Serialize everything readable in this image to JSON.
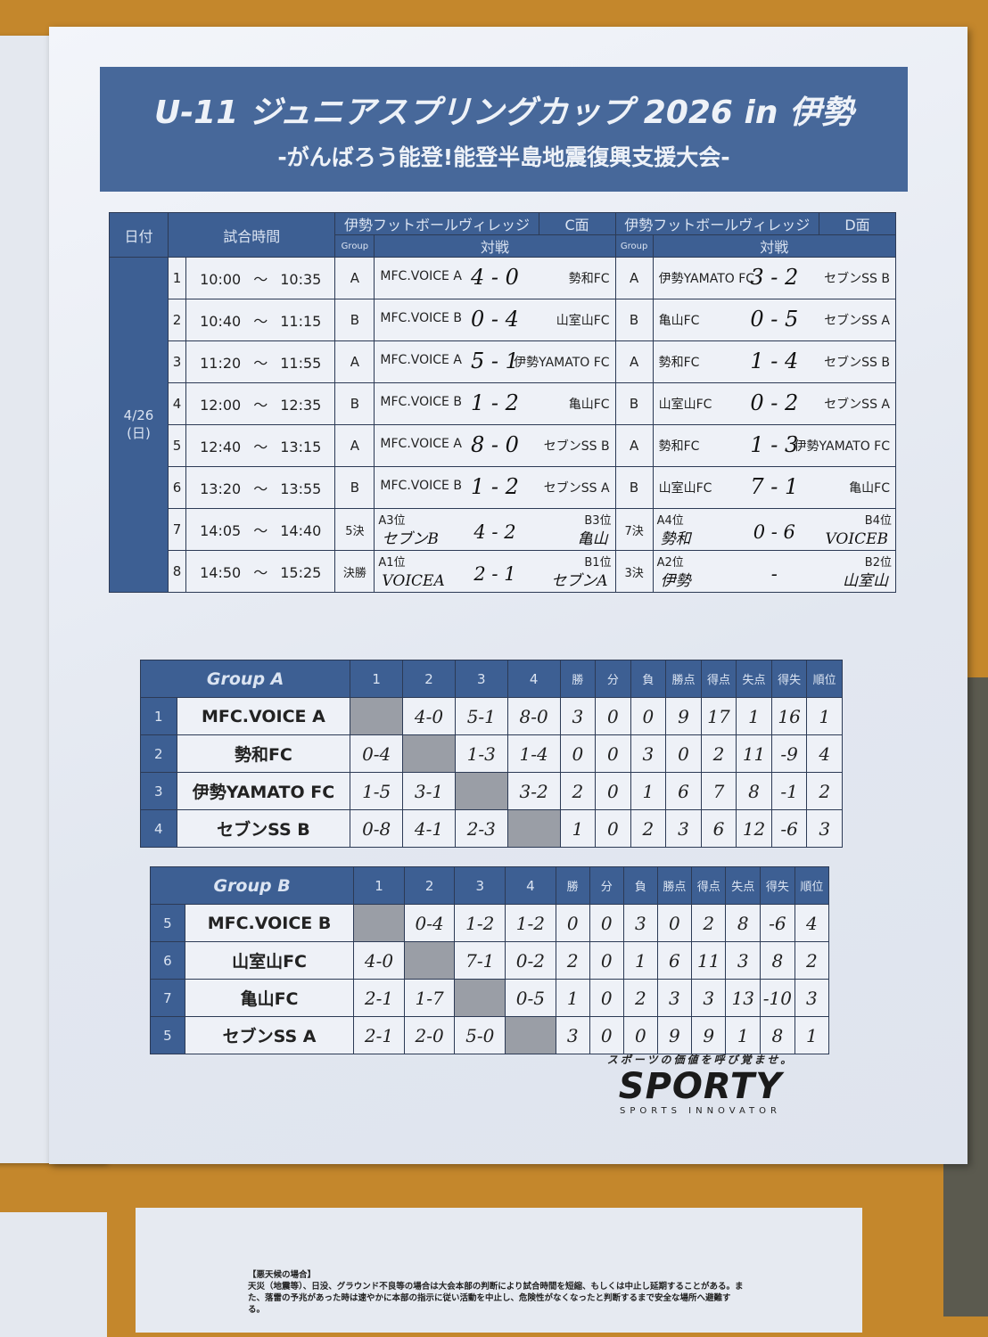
{
  "title": "U-11 ジュニアスプリングカップ 2026 in 伊勢",
  "subtitle": "-がんばろう能登!能登半島地震復興支援大会-",
  "schedule": {
    "headers": {
      "date": "日付",
      "time": "試合時間",
      "venue_c": "伊勢フットボールヴィレッジ",
      "court_c": "C面",
      "venue_d": "伊勢フットボールヴィレッジ",
      "court_d": "D面",
      "group": "Group",
      "match": "対戦"
    },
    "date": "4/26",
    "weekday": "(日)",
    "rows": [
      {
        "no": "1",
        "start": "10:00",
        "end": "10:35",
        "c": {
          "group": "A",
          "home": "MFC.VOICE A",
          "score": "4 - 0",
          "away": "勢和FC"
        },
        "d": {
          "group": "A",
          "home": "伊勢YAMATO FC",
          "score": "3 - 2",
          "away": "セブンSS B"
        }
      },
      {
        "no": "2",
        "start": "10:40",
        "end": "11:15",
        "c": {
          "group": "B",
          "home": "MFC.VOICE B",
          "score": "0 - 4",
          "away": "山室山FC"
        },
        "d": {
          "group": "B",
          "home": "亀山FC",
          "score": "0 - 5",
          "away": "セブンSS A"
        }
      },
      {
        "no": "3",
        "start": "11:20",
        "end": "11:55",
        "c": {
          "group": "A",
          "home": "MFC.VOICE A",
          "score": "5 - 1",
          "away": "伊勢YAMATO FC"
        },
        "d": {
          "group": "A",
          "home": "勢和FC",
          "score": "1 - 4",
          "away": "セブンSS B"
        }
      },
      {
        "no": "4",
        "start": "12:00",
        "end": "12:35",
        "c": {
          "group": "B",
          "home": "MFC.VOICE B",
          "score": "1 - 2",
          "away": "亀山FC"
        },
        "d": {
          "group": "B",
          "home": "山室山FC",
          "score": "0 - 2",
          "away": "セブンSS A"
        }
      },
      {
        "no": "5",
        "start": "12:40",
        "end": "13:15",
        "c": {
          "group": "A",
          "home": "MFC.VOICE A",
          "score": "8 - 0",
          "away": "セブンSS B"
        },
        "d": {
          "group": "A",
          "home": "勢和FC",
          "score": "1 - 3",
          "away": "伊勢YAMATO FC"
        }
      },
      {
        "no": "6",
        "start": "13:20",
        "end": "13:55",
        "c": {
          "group": "B",
          "home": "MFC.VOICE B",
          "score": "1 - 2",
          "away": "セブンSS A"
        },
        "d": {
          "group": "B",
          "home": "山室山FC",
          "score": "7 - 1",
          "away": "亀山FC"
        }
      },
      {
        "no": "7",
        "start": "14:05",
        "end": "14:40",
        "c": {
          "group": "5決",
          "home_slot": "A3位",
          "home": "セブンB",
          "score": "4 - 2",
          "away_slot": "B3位",
          "away": "亀山"
        },
        "d": {
          "group": "7決",
          "home_slot": "A4位",
          "home": "勢和",
          "score": "0 - 6",
          "away_slot": "B4位",
          "away": "VOICEB"
        }
      },
      {
        "no": "8",
        "start": "14:50",
        "end": "15:25",
        "c": {
          "group": "決勝",
          "home_slot": "A1位",
          "home": "VOICEA",
          "score": "2 - 1",
          "away_slot": "B1位",
          "away": "セブンA"
        },
        "d": {
          "group": "3決",
          "home_slot": "A2位",
          "home": "伊勢",
          "score": "-",
          "away_slot": "B2位",
          "away": "山室山"
        }
      }
    ],
    "tilde": "～"
  },
  "standings_columns": [
    "1",
    "2",
    "3",
    "4",
    "勝",
    "分",
    "負",
    "勝点",
    "得点",
    "失点",
    "得失",
    "順位"
  ],
  "group_a": {
    "name": "Group A",
    "rows": [
      {
        "no": "1",
        "team": "MFC.VOICE A",
        "results": [
          "",
          "4-0",
          "5-1",
          "8-0"
        ],
        "stats": [
          "3",
          "0",
          "0",
          "9",
          "17",
          "1",
          "16",
          "1"
        ]
      },
      {
        "no": "2",
        "team": "勢和FC",
        "results": [
          "0-4",
          "",
          "1-3",
          "1-4"
        ],
        "stats": [
          "0",
          "0",
          "3",
          "0",
          "2",
          "11",
          "-9",
          "4"
        ]
      },
      {
        "no": "3",
        "team": "伊勢YAMATO FC",
        "results": [
          "1-5",
          "3-1",
          "",
          "3-2"
        ],
        "stats": [
          "2",
          "0",
          "1",
          "6",
          "7",
          "8",
          "-1",
          "2"
        ]
      },
      {
        "no": "4",
        "team": "セブンSS B",
        "results": [
          "0-8",
          "4-1",
          "2-3",
          ""
        ],
        "stats": [
          "1",
          "0",
          "2",
          "3",
          "6",
          "12",
          "-6",
          "3"
        ]
      }
    ]
  },
  "group_b": {
    "name": "Group B",
    "rows": [
      {
        "no": "5",
        "team": "MFC.VOICE B",
        "results": [
          "",
          "0-4",
          "1-2",
          "1-2"
        ],
        "stats": [
          "0",
          "0",
          "3",
          "0",
          "2",
          "8",
          "-6",
          "4"
        ]
      },
      {
        "no": "6",
        "team": "山室山FC",
        "results": [
          "4-0",
          "",
          "7-1",
          "0-2"
        ],
        "stats": [
          "2",
          "0",
          "1",
          "6",
          "11",
          "3",
          "8",
          "2"
        ]
      },
      {
        "no": "7",
        "team": "亀山FC",
        "results": [
          "2-1",
          "1-7",
          "",
          "0-5"
        ],
        "stats": [
          "1",
          "0",
          "2",
          "3",
          "3",
          "13",
          "-10",
          "3"
        ]
      },
      {
        "no": "5",
        "team": "セブンSS A",
        "results": [
          "2-1",
          "2-0",
          "5-0",
          ""
        ],
        "stats": [
          "3",
          "0",
          "0",
          "9",
          "9",
          "1",
          "8",
          "1"
        ]
      }
    ]
  },
  "sponsor": {
    "tagline": "スポーツの価値を呼び覚ませ。",
    "logo": "SPORTY",
    "sub": "SPORTS INNOVATOR"
  },
  "notes": {
    "heading": "【悪天候の場合】",
    "text": "天災（地震等）、日没、グラウンド不良等の場合は大会本部の判断により試合時間を短縮、もしくは中止し延期することがある。また、落雷の予兆があった時は速やかに本部の指示に従い活動を中止し、危険性がなくなったと判断するまで安全な場所へ避難する。"
  },
  "colors": {
    "header_blue": "#3d5f93",
    "banner_blue": "#47689a",
    "board": "#c4872c",
    "blocked_cell": "#9a9ea6"
  }
}
